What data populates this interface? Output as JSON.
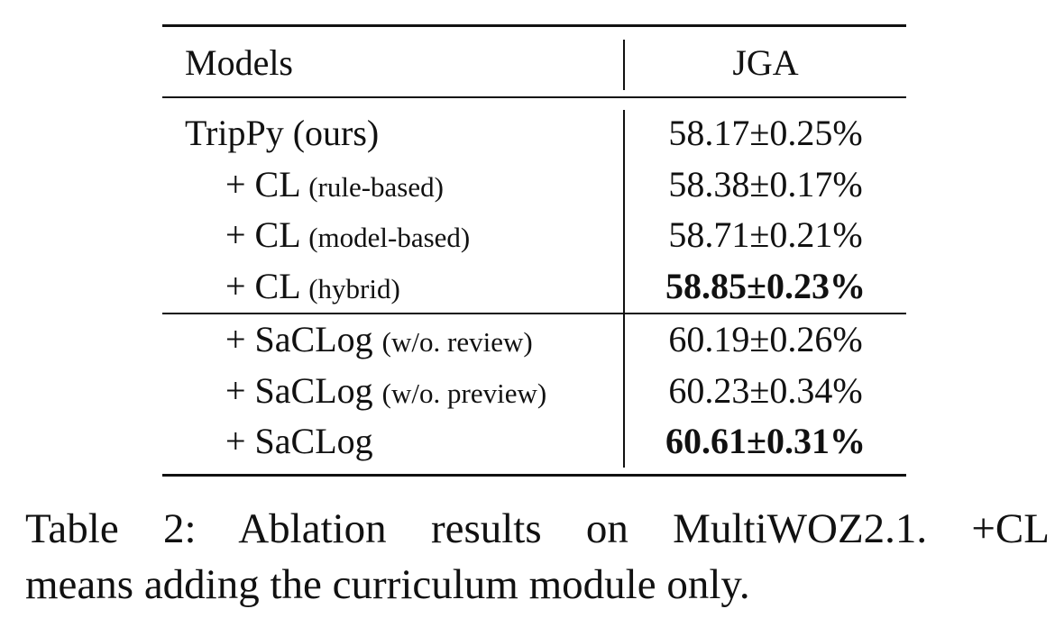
{
  "table": {
    "header": [
      "Models",
      "JGA"
    ],
    "sections": [
      [
        {
          "model": "TripPy (ours)",
          "jga": "58.17±0.25%",
          "bold": false
        },
        {
          "model": "+ CL",
          "detail": "(rule-based)",
          "jga": "58.38±0.17%",
          "bold": false
        },
        {
          "model": "+ CL",
          "detail": "(model-based)",
          "jga": "58.71±0.21%",
          "bold": false
        },
        {
          "model": "+ CL",
          "detail": "(hybrid)",
          "jga": "58.85±0.23%",
          "bold": true
        }
      ],
      [
        {
          "model": "+ SaCLog",
          "detail": "(w/o. review)",
          "jga": "60.19±0.26%",
          "bold": false
        },
        {
          "model": "+ SaCLog",
          "detail": "(w/o. preview)",
          "jga": "60.23±0.34%",
          "bold": false
        },
        {
          "model": "+ SaCLog",
          "jga": "60.61±0.31%",
          "bold": true
        }
      ]
    ]
  },
  "caption": [
    "Table 2:  Ablation results on MultiWOZ2.1.  +CL",
    "means adding the curriculum module only."
  ]
}
